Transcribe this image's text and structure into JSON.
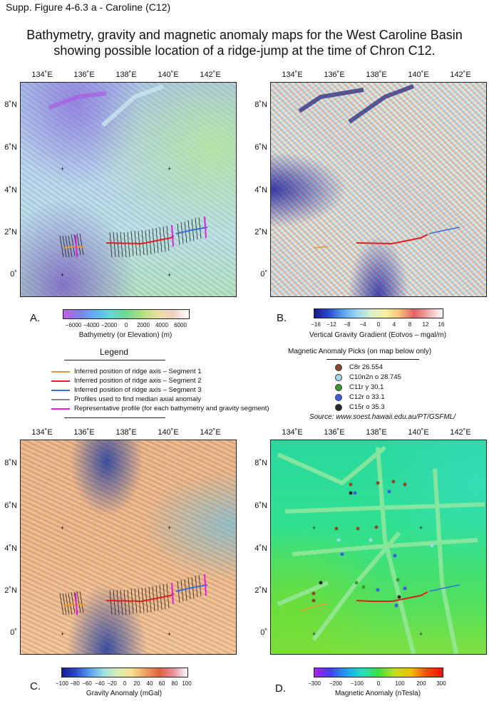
{
  "supp_title": "Supp. Figure 4-6.3 a - Caroline (C12)",
  "title_line1": "Bathymetry, gravity and magnetic anomaly maps for the West Caroline Basin",
  "title_line2": "showing possible location of a ridge-jump at the time of Chron C12.",
  "lon_labels": [
    "134˚E",
    "136˚E",
    "138˚E",
    "140˚E",
    "142˚E"
  ],
  "lat_labels": [
    "8˚N",
    "6˚N",
    "4˚N",
    "2˚N",
    "0˚"
  ],
  "panels": {
    "a": {
      "label": "A.",
      "colorbar_title": "Bathymetry (or Elevation) (m)",
      "ticks": [
        "−6000",
        "−4000",
        "−2000",
        "0",
        "2000",
        "4000",
        "6000"
      ]
    },
    "b": {
      "label": "B.",
      "colorbar_title": "Vertical Gravity Gradient (Eotvos – mgal/m)",
      "ticks": [
        "−16",
        "−12",
        "−8",
        "−4",
        "0",
        "4",
        "8",
        "12",
        "16"
      ]
    },
    "c": {
      "label": "C.",
      "colorbar_title": "Gravity Anomaly (mGal)",
      "ticks": [
        "−100",
        "−80",
        "−60",
        "−40",
        "−20",
        "0",
        "20",
        "40",
        "60",
        "80",
        "100"
      ]
    },
    "d": {
      "label": "D.",
      "colorbar_title": "Magnetic Anomaly (nTesla)",
      "ticks": [
        "−300",
        "−200",
        "−100",
        "0",
        "100",
        "200",
        "300"
      ]
    }
  },
  "legend": {
    "title": "Legend",
    "items": [
      {
        "label": "Inferred position of ridge axis – Segment 1",
        "color": "#e69a2e"
      },
      {
        "label": "Inferred position of ridge axis – Segment 2",
        "color": "#e02020"
      },
      {
        "label": "Inferred position of ridge axis – Segment 3",
        "color": "#3a6fd8"
      },
      {
        "label": "Profiles used to find median axial anomaly",
        "color": "#888888"
      },
      {
        "label": "Representative profile (for each bathymetry and gravity segment)",
        "color": "#e020e0"
      }
    ]
  },
  "mag_picks": {
    "title": "Magnetic Anomaly Picks (on map below only)",
    "items": [
      {
        "label": "C8r 26.554",
        "color": "#8b4a2b"
      },
      {
        "label": "C10n2n o 28.745",
        "color": "#9fd8ef"
      },
      {
        "label": "C11r y 30.1",
        "color": "#3a9a2a"
      },
      {
        "label": "C12r o 33.1",
        "color": "#3a5fe0"
      },
      {
        "label": "C15r o 35.3",
        "color": "#2a2a2a"
      }
    ]
  },
  "source": "Source: www.soest.hawaii.edu.au/PT/GSFML/"
}
